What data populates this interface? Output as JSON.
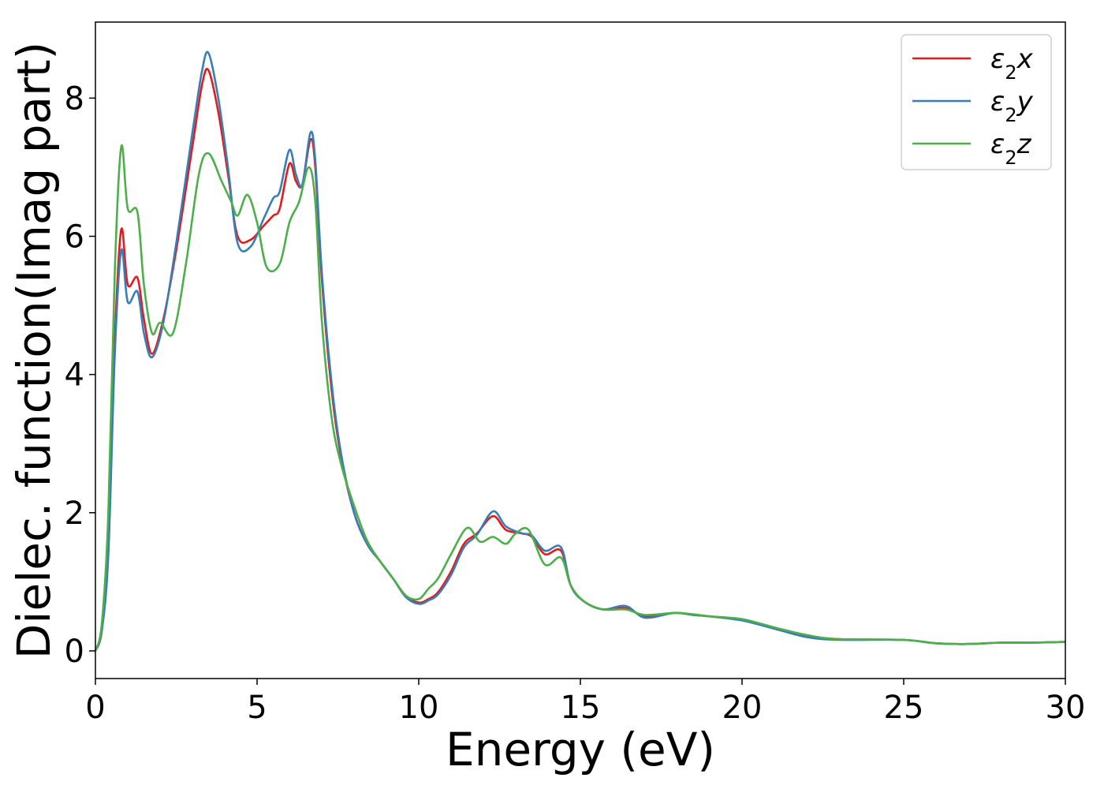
{
  "chart_data": {
    "type": "line",
    "xlabel": "Energy (eV)",
    "ylabel": "Dielec. function(Imag part)",
    "xlim": [
      0,
      30
    ],
    "ylim": [
      -0.4,
      9.1
    ],
    "xticks": [
      0,
      5,
      10,
      15,
      20,
      25,
      30
    ],
    "yticks": [
      0,
      2,
      4,
      6,
      8
    ],
    "grid": false,
    "legend_position": "top-right",
    "series": [
      {
        "name": "ε2x",
        "label_base": "ε",
        "label_sub": "2",
        "label_var": "x",
        "color": "#e41a1c",
        "points": [
          [
            0,
            0
          ],
          [
            0.2,
            0.3
          ],
          [
            0.4,
            1.5
          ],
          [
            0.6,
            4.5
          ],
          [
            0.8,
            6.1
          ],
          [
            1.0,
            5.3
          ],
          [
            1.3,
            5.4
          ],
          [
            1.5,
            4.8
          ],
          [
            1.75,
            4.3
          ],
          [
            2.1,
            4.8
          ],
          [
            2.5,
            5.8
          ],
          [
            3.0,
            7.3
          ],
          [
            3.3,
            8.2
          ],
          [
            3.5,
            8.4
          ],
          [
            3.8,
            7.8
          ],
          [
            4.1,
            6.9
          ],
          [
            4.4,
            6.0
          ],
          [
            4.8,
            5.95
          ],
          [
            5.2,
            6.15
          ],
          [
            5.5,
            6.3
          ],
          [
            5.7,
            6.4
          ],
          [
            6.0,
            7.05
          ],
          [
            6.2,
            6.8
          ],
          [
            6.4,
            6.75
          ],
          [
            6.65,
            7.4
          ],
          [
            6.8,
            7.0
          ],
          [
            7.0,
            5.4
          ],
          [
            7.3,
            3.8
          ],
          [
            7.6,
            2.8
          ],
          [
            8.0,
            2.0
          ],
          [
            8.4,
            1.55
          ],
          [
            8.8,
            1.3
          ],
          [
            9.2,
            1.05
          ],
          [
            9.6,
            0.8
          ],
          [
            10.0,
            0.7
          ],
          [
            10.3,
            0.75
          ],
          [
            10.6,
            0.85
          ],
          [
            11.0,
            1.15
          ],
          [
            11.4,
            1.55
          ],
          [
            11.8,
            1.7
          ],
          [
            12.3,
            1.95
          ],
          [
            12.7,
            1.75
          ],
          [
            13.2,
            1.7
          ],
          [
            13.5,
            1.65
          ],
          [
            13.9,
            1.4
          ],
          [
            14.4,
            1.45
          ],
          [
            14.7,
            0.95
          ],
          [
            15.1,
            0.72
          ],
          [
            15.7,
            0.6
          ],
          [
            16.4,
            0.62
          ],
          [
            17.0,
            0.5
          ],
          [
            17.9,
            0.55
          ],
          [
            18.5,
            0.52
          ],
          [
            19.0,
            0.5
          ],
          [
            20.0,
            0.45
          ],
          [
            21.0,
            0.33
          ],
          [
            22.0,
            0.22
          ],
          [
            23.0,
            0.17
          ],
          [
            25.0,
            0.16
          ],
          [
            26.0,
            0.11
          ],
          [
            27.0,
            0.1
          ],
          [
            28.0,
            0.12
          ],
          [
            29.0,
            0.12
          ],
          [
            30.0,
            0.13
          ]
        ]
      },
      {
        "name": "ε2y",
        "label_base": "ε",
        "label_sub": "2",
        "label_var": "y",
        "color": "#377eb8",
        "points": [
          [
            0,
            0
          ],
          [
            0.2,
            0.3
          ],
          [
            0.4,
            1.4
          ],
          [
            0.6,
            4.3
          ],
          [
            0.8,
            5.8
          ],
          [
            1.0,
            5.05
          ],
          [
            1.3,
            5.2
          ],
          [
            1.5,
            4.6
          ],
          [
            1.75,
            4.25
          ],
          [
            2.1,
            4.75
          ],
          [
            2.5,
            5.9
          ],
          [
            3.0,
            7.5
          ],
          [
            3.3,
            8.4
          ],
          [
            3.5,
            8.65
          ],
          [
            3.8,
            8.0
          ],
          [
            4.1,
            7.0
          ],
          [
            4.4,
            5.9
          ],
          [
            4.8,
            5.85
          ],
          [
            5.2,
            6.25
          ],
          [
            5.5,
            6.55
          ],
          [
            5.7,
            6.65
          ],
          [
            6.0,
            7.25
          ],
          [
            6.2,
            6.9
          ],
          [
            6.4,
            6.75
          ],
          [
            6.65,
            7.5
          ],
          [
            6.8,
            7.1
          ],
          [
            7.0,
            5.5
          ],
          [
            7.3,
            3.9
          ],
          [
            7.6,
            2.85
          ],
          [
            8.0,
            2.0
          ],
          [
            8.4,
            1.55
          ],
          [
            8.8,
            1.3
          ],
          [
            9.2,
            1.05
          ],
          [
            9.6,
            0.78
          ],
          [
            10.0,
            0.68
          ],
          [
            10.3,
            0.73
          ],
          [
            10.6,
            0.82
          ],
          [
            11.0,
            1.1
          ],
          [
            11.4,
            1.5
          ],
          [
            11.8,
            1.68
          ],
          [
            12.3,
            2.02
          ],
          [
            12.7,
            1.8
          ],
          [
            13.2,
            1.7
          ],
          [
            13.5,
            1.67
          ],
          [
            13.9,
            1.45
          ],
          [
            14.4,
            1.5
          ],
          [
            14.7,
            0.95
          ],
          [
            15.1,
            0.72
          ],
          [
            15.7,
            0.6
          ],
          [
            16.4,
            0.65
          ],
          [
            17.0,
            0.48
          ],
          [
            17.9,
            0.55
          ],
          [
            18.5,
            0.52
          ],
          [
            19.0,
            0.5
          ],
          [
            20.0,
            0.44
          ],
          [
            21.0,
            0.32
          ],
          [
            22.0,
            0.2
          ],
          [
            23.0,
            0.16
          ],
          [
            25.0,
            0.16
          ],
          [
            26.0,
            0.11
          ],
          [
            27.0,
            0.1
          ],
          [
            28.0,
            0.12
          ],
          [
            29.0,
            0.12
          ],
          [
            30.0,
            0.13
          ]
        ]
      },
      {
        "name": "ε2z",
        "label_base": "ε",
        "label_sub": "2",
        "label_var": "z",
        "color": "#4daf4a",
        "points": [
          [
            0,
            0
          ],
          [
            0.2,
            0.4
          ],
          [
            0.4,
            2.0
          ],
          [
            0.6,
            5.5
          ],
          [
            0.8,
            7.3
          ],
          [
            1.0,
            6.4
          ],
          [
            1.3,
            6.35
          ],
          [
            1.5,
            5.3
          ],
          [
            1.75,
            4.6
          ],
          [
            2.0,
            4.75
          ],
          [
            2.4,
            4.6
          ],
          [
            2.8,
            5.6
          ],
          [
            3.2,
            6.9
          ],
          [
            3.5,
            7.2
          ],
          [
            3.9,
            6.8
          ],
          [
            4.2,
            6.5
          ],
          [
            4.4,
            6.3
          ],
          [
            4.7,
            6.6
          ],
          [
            5.0,
            6.2
          ],
          [
            5.3,
            5.55
          ],
          [
            5.7,
            5.6
          ],
          [
            6.0,
            6.2
          ],
          [
            6.3,
            6.5
          ],
          [
            6.6,
            7.0
          ],
          [
            6.8,
            6.5
          ],
          [
            7.0,
            4.8
          ],
          [
            7.3,
            3.4
          ],
          [
            7.6,
            2.7
          ],
          [
            8.0,
            2.1
          ],
          [
            8.4,
            1.6
          ],
          [
            8.8,
            1.3
          ],
          [
            9.2,
            1.05
          ],
          [
            9.6,
            0.8
          ],
          [
            10.0,
            0.75
          ],
          [
            10.3,
            0.9
          ],
          [
            10.6,
            1.05
          ],
          [
            11.0,
            1.4
          ],
          [
            11.5,
            1.78
          ],
          [
            11.9,
            1.58
          ],
          [
            12.3,
            1.65
          ],
          [
            12.7,
            1.55
          ],
          [
            13.0,
            1.7
          ],
          [
            13.4,
            1.75
          ],
          [
            13.9,
            1.25
          ],
          [
            14.4,
            1.35
          ],
          [
            14.7,
            0.95
          ],
          [
            15.1,
            0.72
          ],
          [
            15.7,
            0.6
          ],
          [
            16.4,
            0.6
          ],
          [
            17.0,
            0.52
          ],
          [
            17.9,
            0.55
          ],
          [
            18.5,
            0.53
          ],
          [
            19.0,
            0.5
          ],
          [
            20.0,
            0.46
          ],
          [
            21.0,
            0.34
          ],
          [
            22.0,
            0.23
          ],
          [
            23.0,
            0.17
          ],
          [
            25.0,
            0.16
          ],
          [
            26.0,
            0.11
          ],
          [
            27.0,
            0.1
          ],
          [
            28.0,
            0.12
          ],
          [
            29.0,
            0.12
          ],
          [
            30.0,
            0.13
          ]
        ]
      }
    ]
  }
}
